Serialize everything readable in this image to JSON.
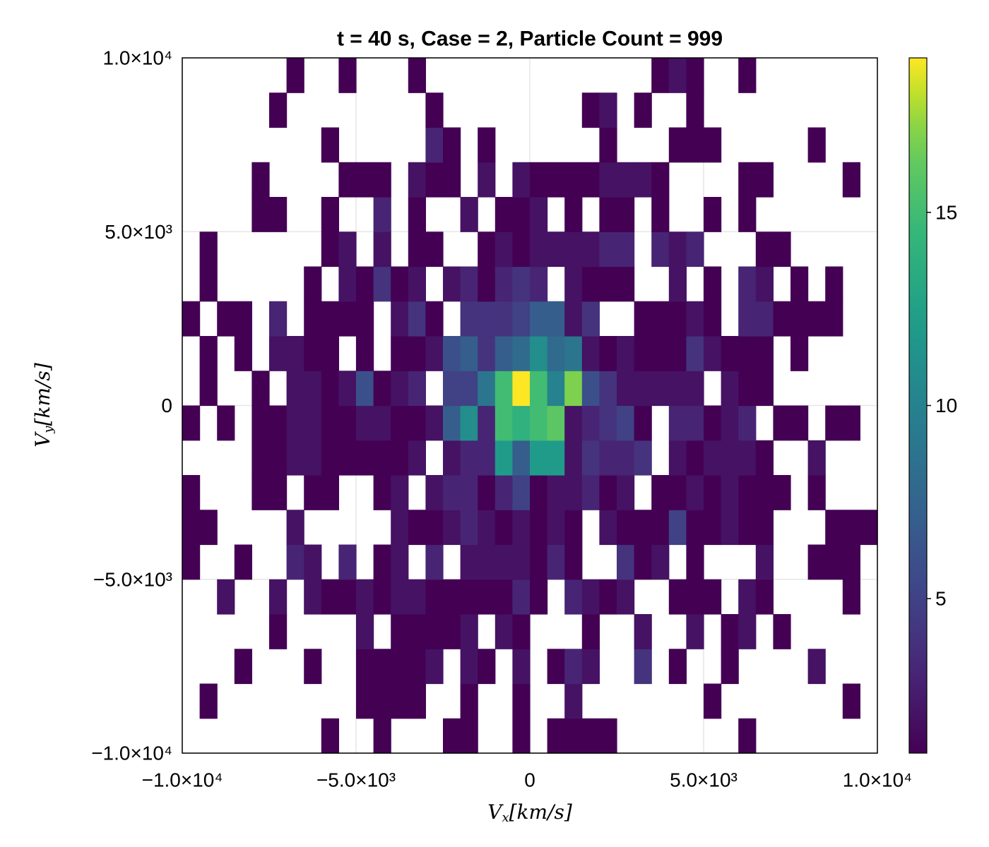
{
  "chart_data": {
    "type": "hist2d",
    "title": "t = 40 s, Case = 2, Particle Count = 999",
    "xlabel": {
      "symbol": "V",
      "subscript": "x",
      "unit": "[km/s]"
    },
    "ylabel": {
      "symbol": "V",
      "subscript": "y",
      "unit": "[km/s]"
    },
    "colormap": "viridis",
    "grid": true,
    "xlim": [
      -10000,
      10000
    ],
    "ylim": [
      -10000,
      10000
    ],
    "xticks": [
      {
        "value": -10000,
        "label": "−1.0×10⁴"
      },
      {
        "value": -5000,
        "label": "−5.0×10³"
      },
      0,
      {
        "value": 5000,
        "label": "5.0×10³"
      },
      {
        "value": 10000,
        "label": "1.0×10⁴"
      }
    ],
    "yticks": [
      {
        "value": -10000,
        "label": "−1.0×10⁴"
      },
      {
        "value": -5000,
        "label": "−5.0×10³"
      },
      0,
      {
        "value": 5000,
        "label": "5.0×10³"
      },
      {
        "value": 10000,
        "label": "1.0×10⁴"
      }
    ],
    "clim": [
      1,
      19
    ],
    "cticks": [
      5,
      10,
      15
    ],
    "xbins": [
      -10000,
      -9500,
      -9000,
      -8500,
      -8000,
      -7500,
      -7000,
      -6500,
      -6000,
      -5500,
      -5000,
      -4500,
      -4000,
      -3500,
      -3000,
      -2500,
      -2000,
      -1500,
      -1000,
      -500,
      0,
      500,
      1000,
      1500,
      2000,
      2500,
      3000,
      3500,
      4000,
      4500,
      5000,
      5500,
      6000,
      6500,
      7000,
      7500,
      8000,
      8500,
      9000,
      9500,
      10000
    ],
    "ybins": [
      -10000,
      -9000,
      -8000,
      -7000,
      -6000,
      -5000,
      -4000,
      -3000,
      -2000,
      -1000,
      0,
      1000,
      2000,
      3000,
      4000,
      5000,
      6000,
      7000,
      8000,
      9000,
      10000
    ],
    "values": [
      [
        null,
        null,
        null,
        null,
        null,
        null,
        null,
        null,
        1,
        null,
        null,
        1,
        null,
        null,
        null,
        1,
        1,
        null,
        null,
        1,
        null,
        1,
        1,
        1,
        1,
        null,
        null,
        null,
        null,
        null,
        null,
        null,
        1,
        null,
        null,
        null,
        null,
        null,
        null,
        null
      ],
      [
        null,
        1,
        null,
        null,
        null,
        null,
        null,
        null,
        null,
        null,
        1,
        1,
        1,
        1,
        null,
        null,
        1,
        null,
        null,
        1,
        null,
        null,
        2,
        null,
        null,
        null,
        null,
        null,
        null,
        null,
        1,
        null,
        null,
        null,
        null,
        null,
        null,
        null,
        1,
        null
      ],
      [
        null,
        null,
        null,
        1,
        null,
        null,
        null,
        1,
        null,
        null,
        1,
        1,
        1,
        1,
        2,
        null,
        2,
        1,
        null,
        2,
        null,
        1,
        3,
        2,
        null,
        null,
        4,
        null,
        1,
        null,
        null,
        1,
        null,
        null,
        null,
        null,
        2,
        null,
        null,
        null
      ],
      [
        null,
        null,
        null,
        null,
        null,
        1,
        null,
        null,
        null,
        null,
        2,
        null,
        1,
        1,
        1,
        1,
        2,
        null,
        2,
        1,
        null,
        null,
        null,
        1,
        null,
        null,
        2,
        null,
        null,
        2,
        null,
        1,
        2,
        null,
        1,
        null,
        null,
        null,
        null,
        null
      ],
      [
        null,
        null,
        2,
        null,
        null,
        2,
        null,
        2,
        1,
        1,
        2,
        1,
        2,
        2,
        1,
        1,
        1,
        1,
        1,
        3,
        1,
        null,
        3,
        2,
        1,
        2,
        null,
        null,
        1,
        1,
        1,
        null,
        2,
        1,
        null,
        null,
        null,
        null,
        1,
        null
      ],
      [
        1,
        null,
        null,
        1,
        null,
        null,
        3,
        2,
        null,
        3,
        null,
        1,
        2,
        null,
        3,
        null,
        2,
        2,
        2,
        2,
        1,
        3,
        1,
        null,
        null,
        4,
        1,
        2,
        null,
        1,
        null,
        null,
        null,
        2,
        null,
        null,
        1,
        1,
        1,
        null
      ],
      [
        1,
        1,
        null,
        null,
        null,
        null,
        2,
        null,
        null,
        null,
        null,
        null,
        2,
        1,
        1,
        2,
        3,
        2,
        1,
        2,
        1,
        2,
        1,
        null,
        2,
        1,
        1,
        1,
        5,
        1,
        1,
        2,
        1,
        1,
        null,
        null,
        null,
        1,
        1,
        1
      ],
      [
        1,
        null,
        null,
        null,
        1,
        1,
        null,
        1,
        1,
        null,
        null,
        1,
        2,
        null,
        2,
        3,
        3,
        1,
        3,
        5,
        1,
        2,
        2,
        3,
        1,
        2,
        null,
        1,
        1,
        2,
        1,
        2,
        1,
        1,
        1,
        null,
        1,
        null,
        null,
        null
      ],
      [
        null,
        null,
        null,
        null,
        1,
        1,
        2,
        2,
        1,
        1,
        1,
        1,
        1,
        2,
        null,
        2,
        3,
        3,
        12,
        7,
        12,
        12,
        2,
        4,
        3,
        3,
        4,
        null,
        2,
        1,
        2,
        2,
        2,
        1,
        null,
        null,
        2,
        null,
        null,
        null
      ],
      [
        1,
        null,
        1,
        null,
        1,
        1,
        2,
        2,
        1,
        1,
        2,
        2,
        1,
        1,
        2,
        7,
        11,
        3,
        15,
        14,
        15,
        16,
        2,
        3,
        4,
        5,
        1,
        null,
        3,
        3,
        1,
        2,
        3,
        null,
        1,
        1,
        null,
        1,
        1,
        null
      ],
      [
        null,
        1,
        null,
        null,
        1,
        null,
        2,
        2,
        1,
        2,
        6,
        1,
        2,
        3,
        null,
        5,
        5,
        9,
        15,
        19,
        15,
        10,
        17,
        6,
        4,
        2,
        2,
        2,
        2,
        2,
        null,
        2,
        1,
        1,
        null,
        null,
        null,
        null,
        null,
        null
      ],
      [
        null,
        1,
        null,
        1,
        null,
        2,
        2,
        1,
        1,
        null,
        1,
        null,
        1,
        1,
        2,
        6,
        7,
        4,
        7,
        8,
        11,
        8,
        9,
        2,
        1,
        2,
        1,
        1,
        1,
        4,
        2,
        1,
        1,
        1,
        null,
        1,
        null,
        null,
        null,
        null
      ],
      [
        1,
        null,
        1,
        1,
        null,
        3,
        null,
        1,
        1,
        1,
        1,
        null,
        2,
        4,
        1,
        null,
        4,
        4,
        4,
        5,
        7,
        7,
        2,
        4,
        null,
        null,
        1,
        1,
        1,
        2,
        1,
        null,
        3,
        3,
        1,
        1,
        1,
        1,
        null,
        null
      ],
      [
        null,
        1,
        null,
        null,
        null,
        null,
        null,
        1,
        null,
        2,
        1,
        4,
        1,
        2,
        null,
        2,
        3,
        1,
        3,
        4,
        3,
        null,
        2,
        1,
        1,
        1,
        null,
        null,
        2,
        null,
        1,
        null,
        3,
        2,
        null,
        1,
        null,
        1,
        null,
        null
      ],
      [
        null,
        1,
        null,
        null,
        null,
        null,
        null,
        null,
        1,
        2,
        null,
        2,
        null,
        1,
        1,
        null,
        null,
        1,
        2,
        1,
        2,
        2,
        2,
        2,
        3,
        3,
        null,
        3,
        2,
        3,
        null,
        null,
        null,
        1,
        1,
        null,
        null,
        null,
        null,
        null
      ],
      [
        null,
        null,
        null,
        null,
        1,
        1,
        null,
        null,
        1,
        null,
        null,
        3,
        null,
        1,
        null,
        null,
        2,
        null,
        1,
        1,
        2,
        null,
        1,
        null,
        1,
        1,
        null,
        1,
        null,
        null,
        1,
        null,
        1,
        null,
        null,
        null,
        null,
        null,
        null,
        null
      ],
      [
        null,
        null,
        null,
        null,
        1,
        null,
        null,
        null,
        null,
        1,
        1,
        1,
        null,
        2,
        1,
        1,
        null,
        2,
        null,
        2,
        1,
        1,
        1,
        1,
        2,
        2,
        2,
        1,
        null,
        null,
        null,
        null,
        1,
        1,
        null,
        null,
        null,
        null,
        1,
        null
      ],
      [
        null,
        null,
        null,
        null,
        null,
        null,
        null,
        null,
        1,
        null,
        null,
        null,
        null,
        null,
        3,
        1,
        null,
        1,
        null,
        null,
        null,
        null,
        null,
        null,
        1,
        null,
        null,
        null,
        1,
        1,
        1,
        null,
        null,
        null,
        null,
        null,
        1,
        null,
        null,
        null
      ],
      [
        null,
        null,
        null,
        null,
        null,
        1,
        null,
        null,
        null,
        null,
        null,
        null,
        null,
        null,
        1,
        null,
        null,
        null,
        null,
        null,
        null,
        null,
        null,
        1,
        2,
        null,
        1,
        null,
        null,
        1,
        null,
        null,
        null,
        null,
        null,
        null,
        null,
        null,
        null,
        null
      ],
      [
        null,
        null,
        null,
        null,
        null,
        null,
        1,
        null,
        null,
        1,
        null,
        null,
        null,
        1,
        null,
        null,
        null,
        null,
        null,
        null,
        null,
        null,
        null,
        null,
        null,
        null,
        null,
        1,
        2,
        1,
        null,
        null,
        1,
        null,
        null,
        null,
        null,
        null,
        null,
        null
      ]
    ]
  }
}
